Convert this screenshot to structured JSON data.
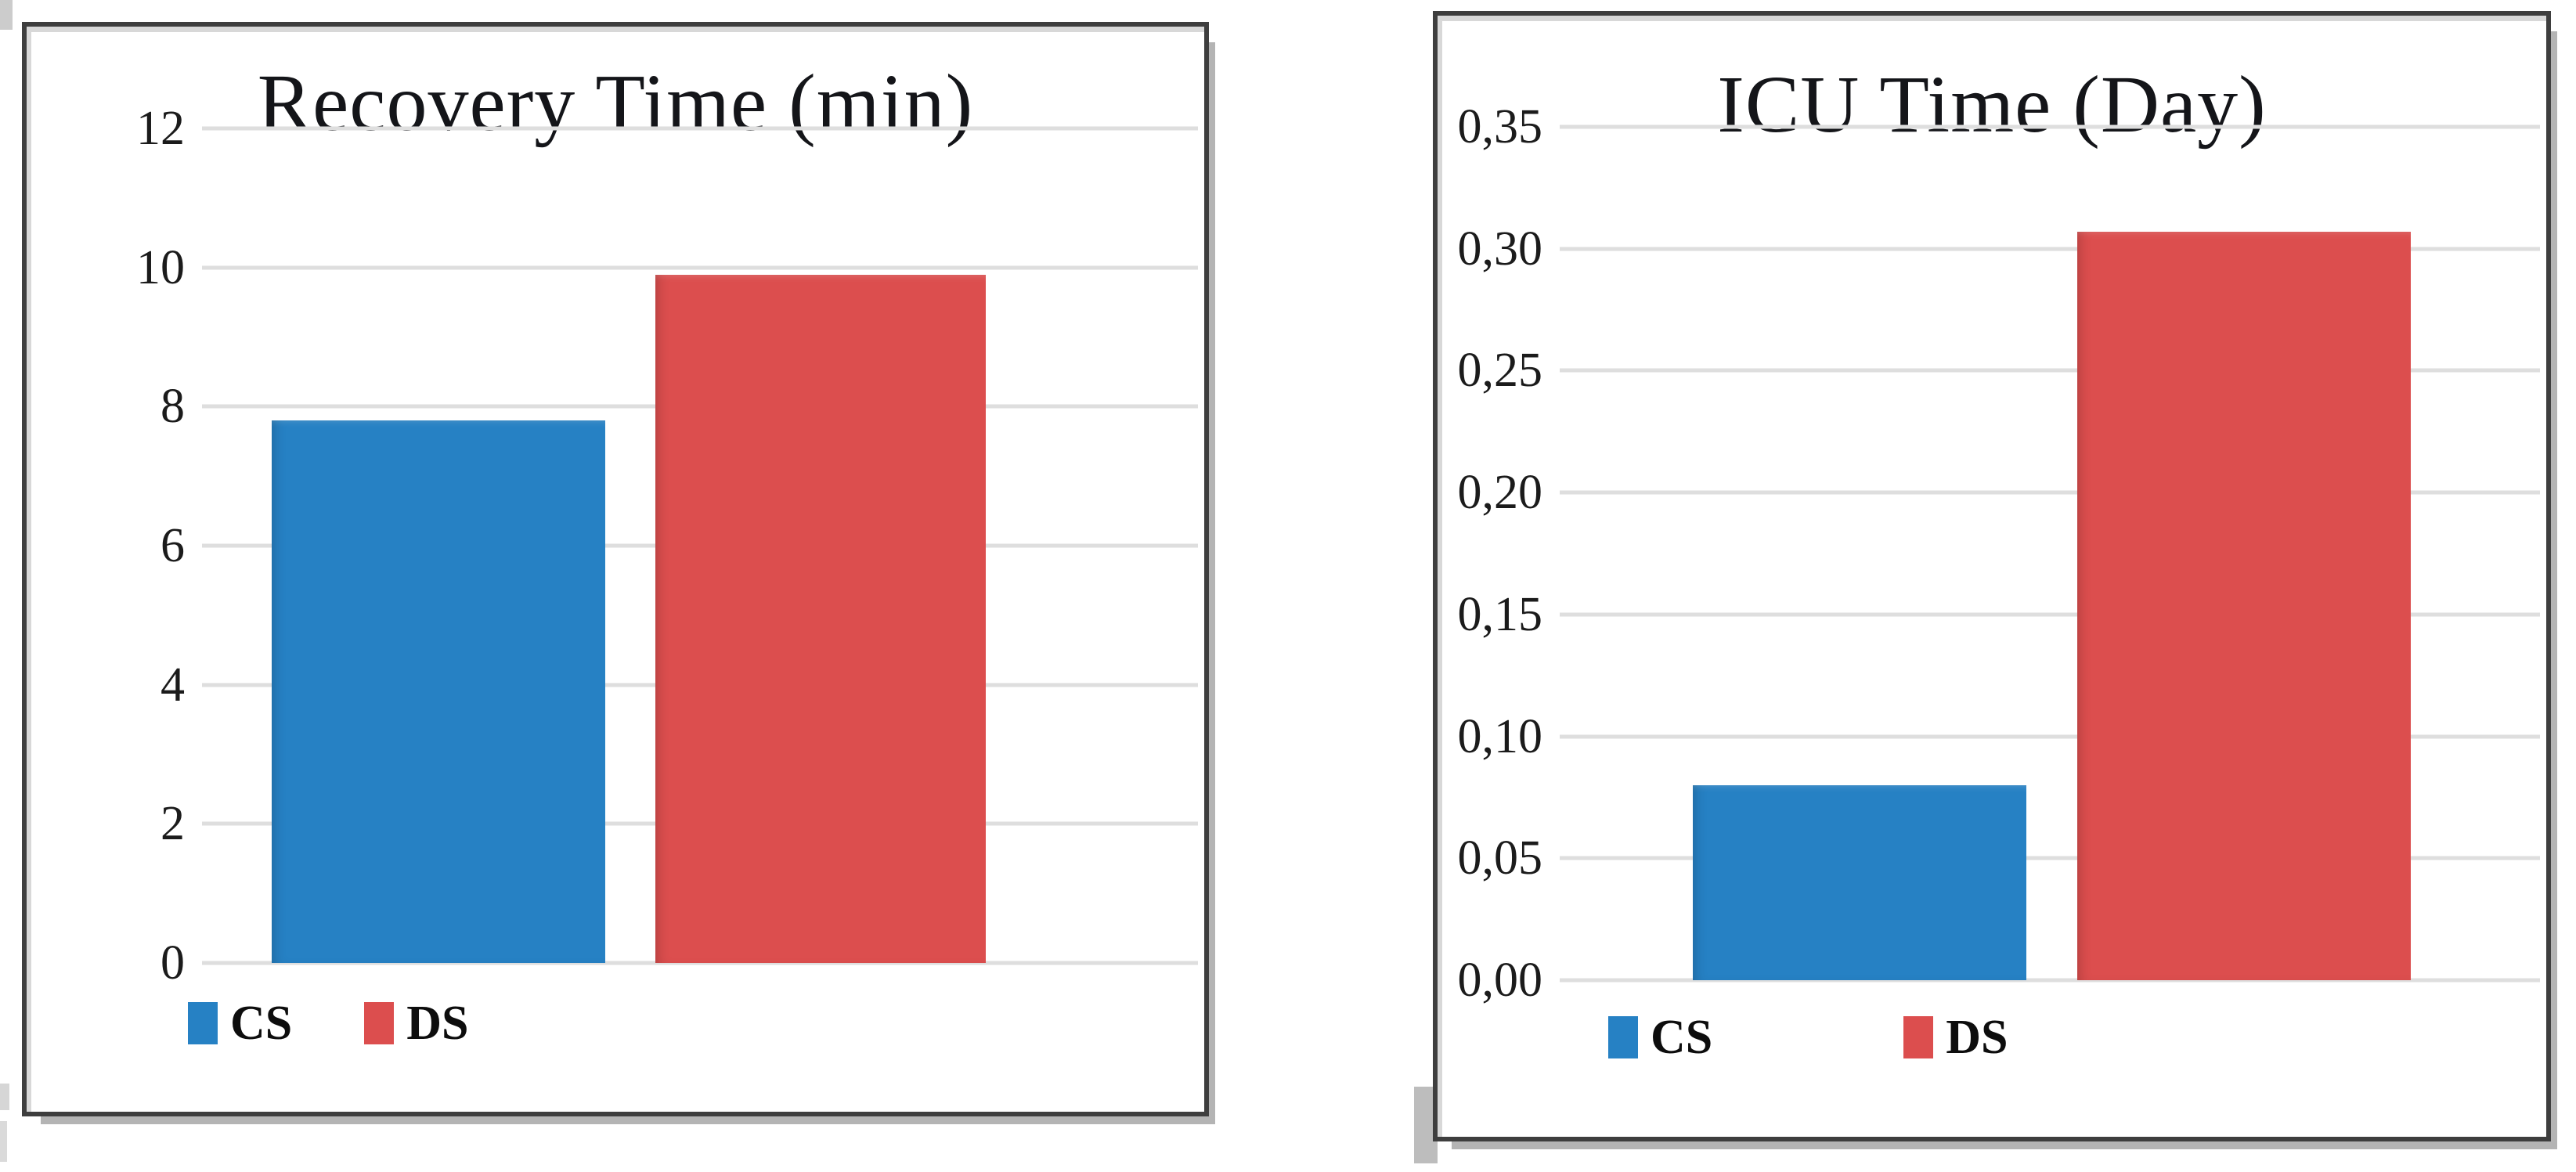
{
  "page": {
    "background": "#ffffff"
  },
  "chart_data": [
    {
      "type": "bar",
      "title": "Recovery Time (min)",
      "categories": [
        "CS",
        "DS"
      ],
      "values": [
        7.8,
        9.9
      ],
      "colors": [
        "#2681c4",
        "#dc4e4e"
      ],
      "xlabel": "",
      "ylabel": "",
      "ylim": [
        0,
        12
      ],
      "ytick_step": 2,
      "ytick_labels_top_to_bottom": [
        "12",
        "10",
        "8",
        "6",
        "4",
        "2",
        "0"
      ],
      "decimal_separator": ".",
      "grid": true,
      "legend_position": "bottom",
      "legend_entries": [
        "CS",
        "DS"
      ]
    },
    {
      "type": "bar",
      "title": "ICU Time (Day)",
      "categories": [
        "CS",
        "DS"
      ],
      "values": [
        0.08,
        0.307
      ],
      "colors": [
        "#2681c4",
        "#dc4e4e"
      ],
      "xlabel": "",
      "ylabel": "",
      "ylim": [
        0,
        0.35
      ],
      "ytick_step": 0.05,
      "ytick_labels_top_to_bottom": [
        "0,35",
        "0,30",
        "0,25",
        "0,20",
        "0,15",
        "0,10",
        "0,05",
        "0,00"
      ],
      "decimal_separator": ",",
      "grid": true,
      "legend_position": "bottom",
      "legend_entries": [
        "CS",
        "DS"
      ]
    }
  ]
}
